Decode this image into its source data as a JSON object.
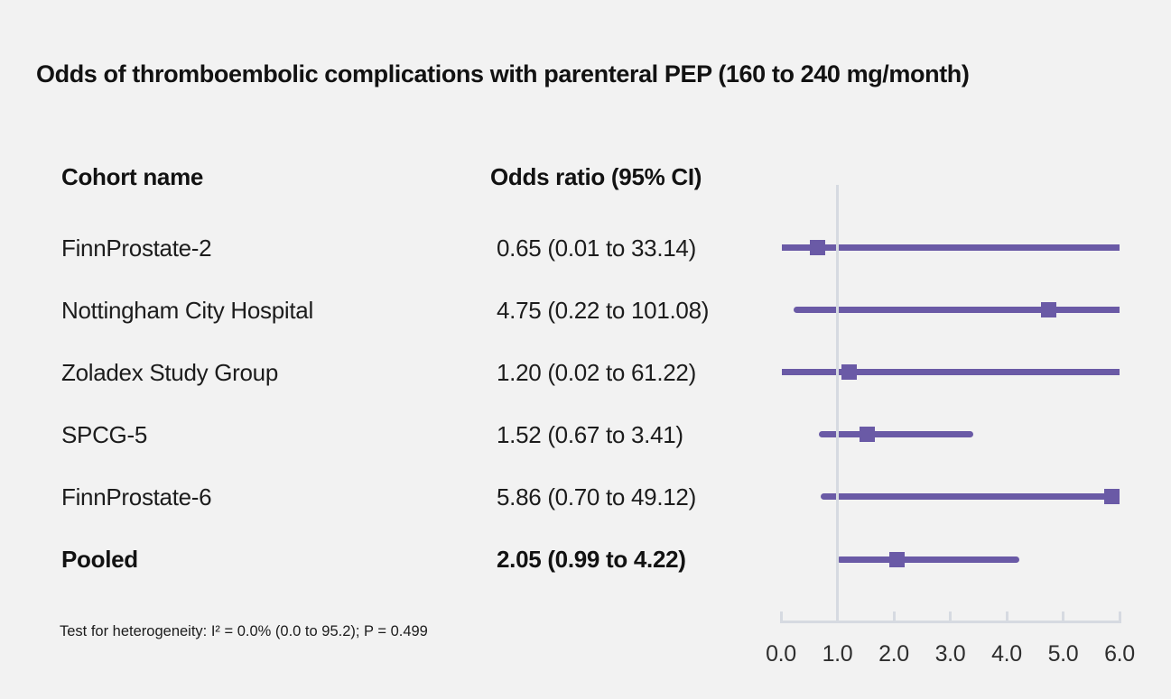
{
  "title": "Odds of thromboembolic complications with parenteral PEP (160 to 240 mg/month)",
  "columns": {
    "cohort": "Cohort name",
    "odds_ratio": "Odds ratio (95% CI)"
  },
  "footnote": "Test for heterogeneity: I² = 0.0% (0.0 to 95.2); P = 0.499",
  "chart_data": {
    "type": "forest",
    "title": "Odds of thromboembolic complications with parenteral PEP (160 to 240 mg/month)",
    "xlabel": "Odds ratio",
    "axis": {
      "min": 0.0,
      "max": 6.0,
      "reference_value": 1.0
    },
    "tick_values": [
      0.0,
      1.0,
      2.0,
      3.0,
      4.0,
      5.0,
      6.0
    ],
    "tick_labels": [
      "0.0",
      "1.0",
      "2.0",
      "3.0",
      "4.0",
      "5.0",
      "6.0"
    ],
    "rows": [
      {
        "name": "FinnProstate-2",
        "or_label": "0.65 (0.01 to 33.14)",
        "or": 0.65,
        "ci_low": 0.01,
        "ci_high": 33.14,
        "bold": false
      },
      {
        "name": "Nottingham City Hospital",
        "or_label": "4.75 (0.22 to 101.08)",
        "or": 4.75,
        "ci_low": 0.22,
        "ci_high": 101.08,
        "bold": false
      },
      {
        "name": "Zoladex Study Group",
        "or_label": "1.20 (0.02 to 61.22)",
        "or": 1.2,
        "ci_low": 0.02,
        "ci_high": 61.22,
        "bold": false
      },
      {
        "name": "SPCG-5",
        "or_label": "1.52 (0.67 to 3.41)",
        "or": 1.52,
        "ci_low": 0.67,
        "ci_high": 3.41,
        "bold": false
      },
      {
        "name": "FinnProstate-6",
        "or_label": "5.86 (0.70 to 49.12)",
        "or": 5.86,
        "ci_low": 0.7,
        "ci_high": 49.12,
        "bold": false
      },
      {
        "name": "Pooled",
        "or_label": "2.05 (0.99 to 4.22)",
        "or": 2.05,
        "ci_low": 0.99,
        "ci_high": 4.22,
        "bold": true
      }
    ],
    "colors": {
      "marker": "#6a5aa6",
      "ci_line": "#6a5aa6",
      "axis": "#d6dae1",
      "background": "#f2f2f2",
      "text": "#1c1c1c"
    },
    "legend": "none",
    "grid": "off"
  }
}
